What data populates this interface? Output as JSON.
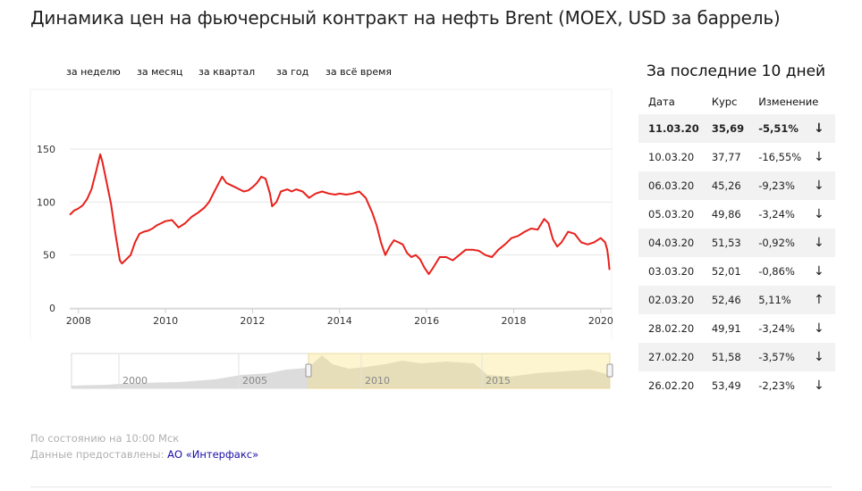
{
  "page": {
    "title": "Динамика цен на фьючерсный контракт на нефть Brent (MOEX, USD за баррель)"
  },
  "periods": [
    "за неделю",
    "за месяц",
    "за квартал",
    "за год",
    "за всё время"
  ],
  "chart_data": {
    "type": "line",
    "title": "",
    "xlabel": "",
    "ylabel": "",
    "x_ticks": [
      "2008",
      "2010",
      "2012",
      "2014",
      "2016",
      "2018",
      "2020"
    ],
    "y_ticks": [
      0,
      50,
      100,
      150
    ],
    "ylim": [
      0,
      150
    ],
    "xlim": [
      2007.8,
      2020.25
    ],
    "grid": true,
    "line_color": "#e8201c",
    "series": [
      {
        "name": "",
        "x": [
          2007.8,
          2007.9,
          2008.0,
          2008.1,
          2008.2,
          2008.3,
          2008.4,
          2008.5,
          2008.55,
          2008.65,
          2008.75,
          2008.85,
          2008.95,
          2009.0,
          2009.1,
          2009.2,
          2009.3,
          2009.4,
          2009.5,
          2009.6,
          2009.7,
          2009.8,
          2009.9,
          2010.0,
          2010.15,
          2010.3,
          2010.45,
          2010.6,
          2010.75,
          2010.9,
          2011.0,
          2011.1,
          2011.2,
          2011.3,
          2011.4,
          2011.5,
          2011.6,
          2011.7,
          2011.8,
          2011.9,
          2012.0,
          2012.1,
          2012.2,
          2012.3,
          2012.4,
          2012.45,
          2012.55,
          2012.65,
          2012.8,
          2012.9,
          2013.0,
          2013.15,
          2013.3,
          2013.45,
          2013.6,
          2013.75,
          2013.9,
          2014.0,
          2014.15,
          2014.3,
          2014.45,
          2014.6,
          2014.75,
          2014.85,
          2014.95,
          2015.05,
          2015.15,
          2015.25,
          2015.35,
          2015.45,
          2015.55,
          2015.65,
          2015.75,
          2015.85,
          2015.95,
          2016.05,
          2016.15,
          2016.3,
          2016.45,
          2016.6,
          2016.75,
          2016.9,
          2017.05,
          2017.2,
          2017.35,
          2017.5,
          2017.65,
          2017.8,
          2017.95,
          2018.1,
          2018.25,
          2018.4,
          2018.55,
          2018.7,
          2018.8,
          2018.9,
          2019.0,
          2019.1,
          2019.25,
          2019.4,
          2019.55,
          2019.7,
          2019.85,
          2020.0,
          2020.1,
          2020.15,
          2020.18,
          2020.2
        ],
        "values": [
          88,
          92,
          94,
          97,
          103,
          112,
          128,
          145,
          138,
          118,
          98,
          70,
          45,
          42,
          46,
          50,
          62,
          70,
          72,
          73,
          75,
          78,
          80,
          82,
          83,
          76,
          80,
          86,
          90,
          95,
          100,
          108,
          116,
          124,
          118,
          116,
          114,
          112,
          110,
          111,
          114,
          118,
          124,
          122,
          108,
          96,
          100,
          110,
          112,
          110,
          112,
          110,
          104,
          108,
          110,
          108,
          107,
          108,
          107,
          108,
          110,
          104,
          90,
          78,
          62,
          50,
          58,
          64,
          62,
          60,
          52,
          48,
          50,
          46,
          38,
          32,
          38,
          48,
          48,
          45,
          50,
          55,
          55,
          54,
          50,
          48,
          55,
          60,
          66,
          68,
          72,
          75,
          74,
          84,
          80,
          65,
          58,
          62,
          72,
          70,
          62,
          60,
          62,
          66,
          62,
          55,
          45,
          36
        ]
      }
    ]
  },
  "navigator": {
    "ticks": [
      "2000",
      "2005",
      "2010",
      "2015"
    ]
  },
  "side": {
    "title": "За последние 10 дней",
    "headers": {
      "date": "Дата",
      "rate": "Курс",
      "change": "Изменение"
    },
    "rows": [
      {
        "date": "11.03.20",
        "rate": "35,69",
        "change": "-5,51%",
        "dir": "down",
        "arrow": "↓"
      },
      {
        "date": "10.03.20",
        "rate": "37,77",
        "change": "-16,55%",
        "dir": "down",
        "arrow": "↓"
      },
      {
        "date": "06.03.20",
        "rate": "45,26",
        "change": "-9,23%",
        "dir": "down",
        "arrow": "↓"
      },
      {
        "date": "05.03.20",
        "rate": "49,86",
        "change": "-3,24%",
        "dir": "down",
        "arrow": "↓"
      },
      {
        "date": "04.03.20",
        "rate": "51,53",
        "change": "-0,92%",
        "dir": "down",
        "arrow": "↓"
      },
      {
        "date": "03.03.20",
        "rate": "52,01",
        "change": "-0,86%",
        "dir": "down",
        "arrow": "↓"
      },
      {
        "date": "02.03.20",
        "rate": "52,46",
        "change": "5,11%",
        "dir": "up",
        "arrow": "↑"
      },
      {
        "date": "28.02.20",
        "rate": "49,91",
        "change": "-3,24%",
        "dir": "down",
        "arrow": "↓"
      },
      {
        "date": "27.02.20",
        "rate": "51,58",
        "change": "-3,57%",
        "dir": "down",
        "arrow": "↓"
      },
      {
        "date": "26.02.20",
        "rate": "53,49",
        "change": "-2,23%",
        "dir": "down",
        "arrow": "↓"
      }
    ]
  },
  "footer": {
    "status": "По состоянию на 10:00 Мск",
    "provided_label": "Данные предоставлены:",
    "provider": "АО «Интерфакс»"
  }
}
